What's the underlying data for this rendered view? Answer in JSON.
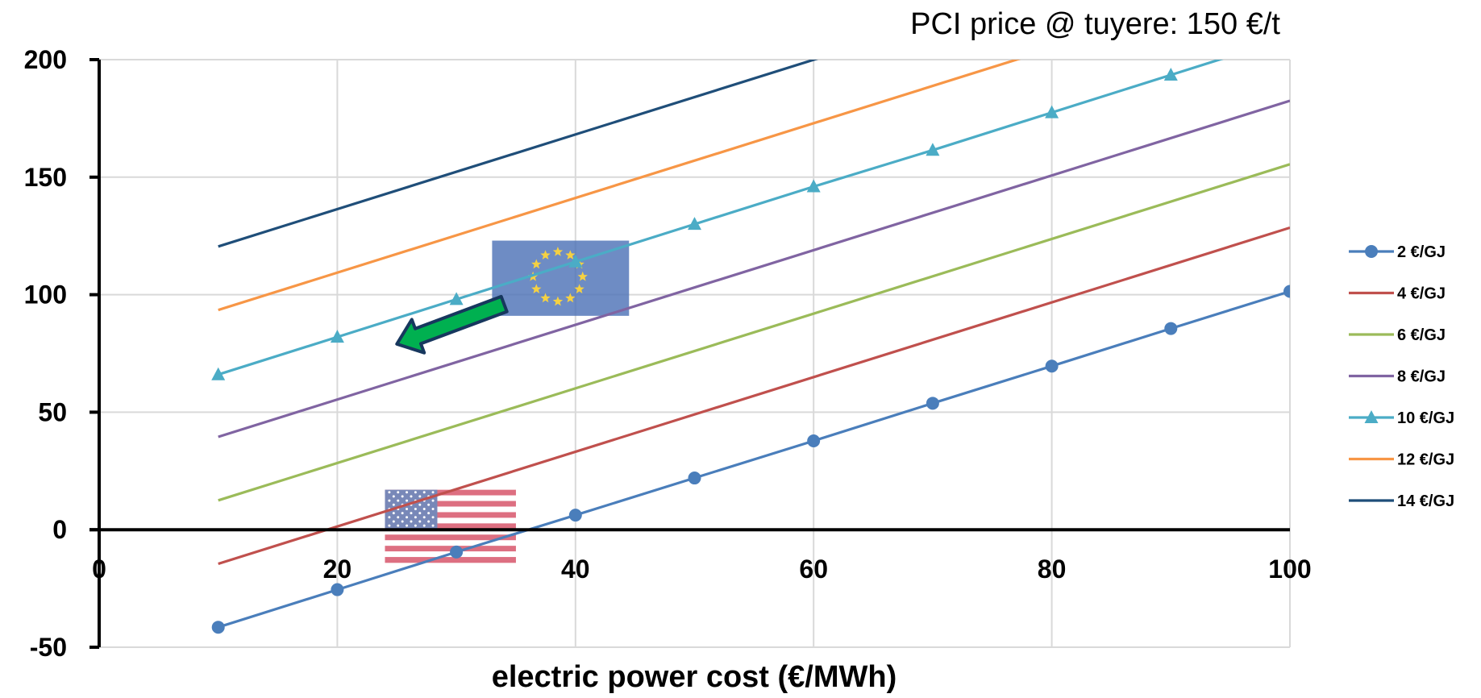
{
  "chart_data": {
    "type": "line",
    "title": "PCI price @ tuyere: 150 €/t",
    "xlabel": "electric power cost (€/MWh)",
    "ylabel": "",
    "xlim": [
      0,
      100
    ],
    "ylim": [
      -50,
      200
    ],
    "x_ticks": [
      "0",
      "20",
      "40",
      "60",
      "80",
      "100"
    ],
    "y_ticks": [
      "-50",
      "0",
      "50",
      "100",
      "150",
      "200"
    ],
    "grid": true,
    "legend_position": "right",
    "series": [
      {
        "name": "2 €/GJ",
        "color": "#4a7ebb",
        "marker": "circle",
        "x": [
          10,
          20,
          30,
          40,
          50,
          60,
          70,
          80,
          90,
          100
        ],
        "y": [
          -41.5,
          -25.5,
          -9.5,
          6.2,
          22,
          37.8,
          53.8,
          69.6,
          85.6,
          101.4
        ]
      },
      {
        "name": "4 €/GJ",
        "color": "#c0504d",
        "marker": "none",
        "x": [
          10,
          100
        ],
        "y": [
          -14.5,
          128.5
        ]
      },
      {
        "name": "6 €/GJ",
        "color": "#9bbb59",
        "marker": "none",
        "x": [
          10,
          100
        ],
        "y": [
          12.5,
          155.5
        ]
      },
      {
        "name": "8 €/GJ",
        "color": "#8064a2",
        "marker": "none",
        "x": [
          10,
          100
        ],
        "y": [
          39.5,
          182.5
        ]
      },
      {
        "name": "10 €/GJ",
        "color": "#4bacc6",
        "marker": "triangle",
        "x": [
          10,
          20,
          30,
          40,
          50,
          60,
          70,
          80,
          90,
          100
        ],
        "y": [
          66,
          82,
          98,
          114,
          130,
          146,
          161.5,
          177.5,
          193.5,
          209.5
        ]
      },
      {
        "name": "12 €/GJ",
        "color": "#f79646",
        "marker": "none",
        "x": [
          10,
          100
        ],
        "y": [
          93.5,
          236.5
        ]
      },
      {
        "name": "14 €/GJ",
        "color": "#1f4e79",
        "marker": "none",
        "x": [
          10,
          100
        ],
        "y": [
          120.5,
          263.5
        ]
      }
    ],
    "annotations": [
      {
        "kind": "eu-flag-icon",
        "x_range": [
          33,
          44.5
        ],
        "y_range": [
          91,
          123
        ]
      },
      {
        "kind": "us-flag-icon",
        "x_range": [
          24,
          35
        ],
        "y_range": [
          -14,
          17
        ]
      },
      {
        "kind": "green-arrow-icon",
        "from": [
          34,
          96
        ],
        "to": [
          25,
          79
        ],
        "color": "#00b050"
      }
    ]
  }
}
